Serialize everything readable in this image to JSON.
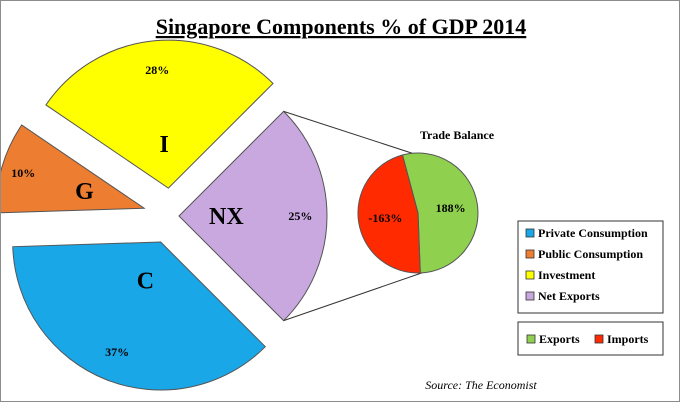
{
  "chart_data": [
    {
      "type": "pie",
      "title": "Singapore Components % of GDP 2014",
      "slices": [
        {
          "letter": "C",
          "label": "Private Consumption",
          "value": 37,
          "value_label": "37%",
          "color": "#1aa7e8"
        },
        {
          "letter": "G",
          "label": "Public Consumption",
          "value": 10,
          "value_label": "10%",
          "color": "#ed7d31"
        },
        {
          "letter": "I",
          "label": "Investment",
          "value": 28,
          "value_label": "28%",
          "color": "#ffff00"
        },
        {
          "letter": "NX",
          "label": "Net Exports",
          "value": 25,
          "value_label": "25%",
          "color": "#c9a8e0"
        }
      ],
      "legend_position": "right"
    },
    {
      "type": "pie",
      "title": "Trade Balance",
      "slices": [
        {
          "label": "Exports",
          "value": 188,
          "value_label": "188%",
          "color": "#8fd14f"
        },
        {
          "label": "Imports",
          "value": -163,
          "value_label": "-163%",
          "color": "#ff2a00"
        }
      ],
      "legend_position": "bottom-right"
    }
  ],
  "source": "Source: The Economist"
}
